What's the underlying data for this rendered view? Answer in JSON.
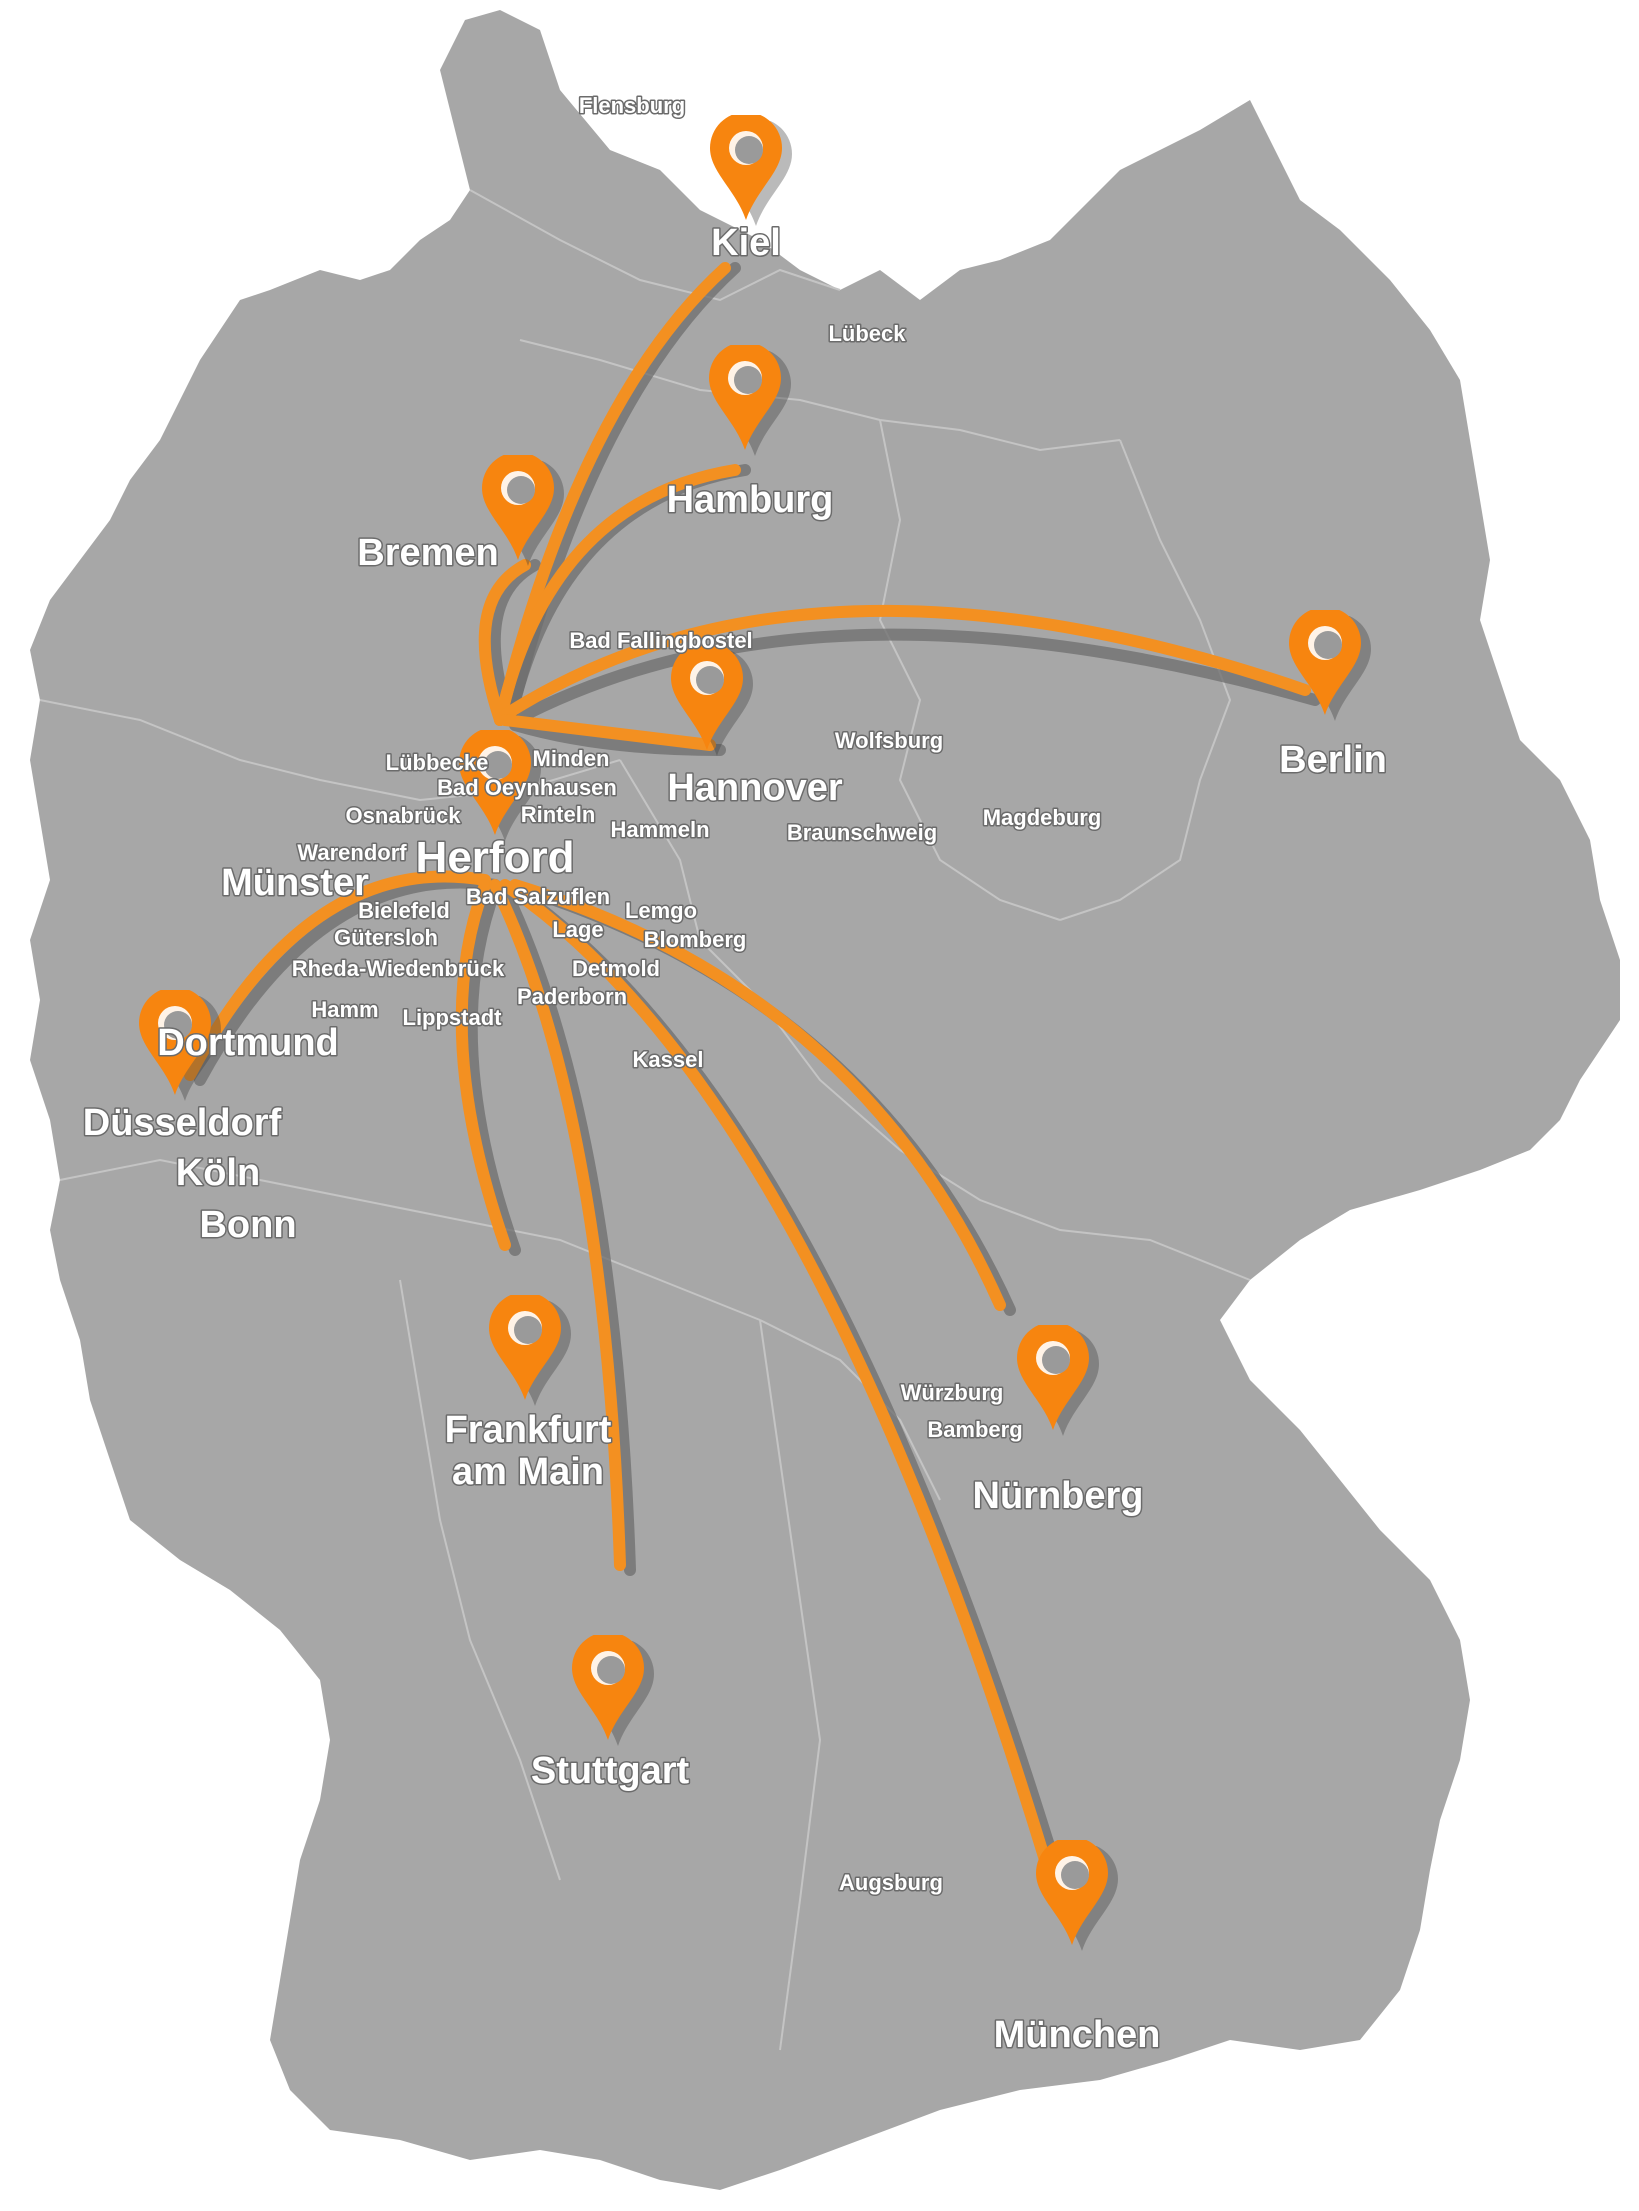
{
  "colors": {
    "land": "#a7a7a7",
    "border": "#c4c4c4",
    "route": "#f39021",
    "route_shadow": "#6e6e6e",
    "pin": "#f7850f",
    "label": "#ffffff"
  },
  "hub": {
    "name": "Herford"
  },
  "destinations": [
    {
      "name": "Kiel"
    },
    {
      "name": "Hamburg"
    },
    {
      "name": "Bremen"
    },
    {
      "name": "Berlin"
    },
    {
      "name": "Hannover"
    },
    {
      "name": "Dortmund"
    },
    {
      "name": "Frankfurt am Main"
    },
    {
      "name": "Stuttgart"
    },
    {
      "name": "Nürnberg"
    },
    {
      "name": "München"
    }
  ],
  "city_labels_major": {
    "kiel": "Kiel",
    "hamburg": "Hamburg",
    "bremen": "Bremen",
    "berlin": "Berlin",
    "hannover": "Hannover",
    "herford": "Herford",
    "muenster": "Münster",
    "dortmund": "Dortmund",
    "duesseldorf": "Düsseldorf",
    "koeln": "Köln",
    "bonn": "Bonn",
    "frankfurt_1": "Frankfurt",
    "frankfurt_2": "am Main",
    "stuttgart": "Stuttgart",
    "nuernberg": "Nürnberg",
    "muenchen": "München"
  },
  "city_labels_minor": {
    "flensburg": "Flensburg",
    "luebeck": "Lübeck",
    "bad_fallingbostel": "Bad Fallingbostel",
    "wolfsburg": "Wolfsburg",
    "braunschweig": "Braunschweig",
    "magdeburg": "Magdeburg",
    "luebbecke": "Lübbecke",
    "minden": "Minden",
    "bad_oeynhausen": "Bad Oeynhausen",
    "osnabrueck": "Osnabrück",
    "rinteln": "Rinteln",
    "hameln": "Hammeln",
    "warendorf": "Warendorf",
    "bad_salzuflen": "Bad Salzuflen",
    "bielefeld": "Bielefeld",
    "lemgo": "Lemgo",
    "guetersloh": "Gütersloh",
    "lage": "Lage",
    "blomberg": "Blomberg",
    "rheda": "Rheda-Wiedenbrück",
    "detmold": "Detmold",
    "hamm": "Hamm",
    "lippstadt": "Lippstadt",
    "paderborn": "Paderborn",
    "kassel": "Kassel",
    "wuerzburg": "Würzburg",
    "bamberg": "Bamberg",
    "augsburg": "Augsburg"
  }
}
